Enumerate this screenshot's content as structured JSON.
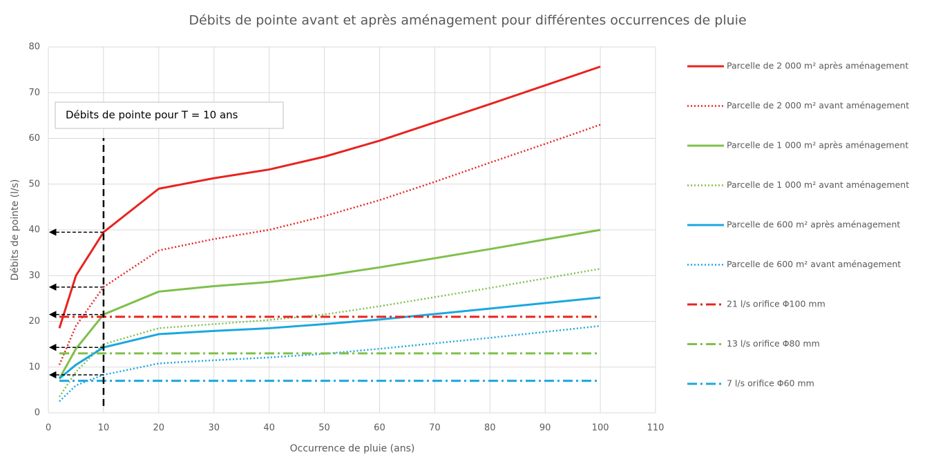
{
  "chart_data": {
    "type": "line",
    "title": "Débits de pointe avant et après aménagement pour différentes occurrences de pluie",
    "x_label": "Occurrence de pluie (ans)",
    "y_label": "Débits de pointe (l/s)",
    "annotation": "Débits de pointe pour T = 10 ans",
    "x": [
      2,
      5,
      10,
      20,
      30,
      40,
      50,
      60,
      70,
      80,
      90,
      100
    ],
    "xlim": [
      0,
      110
    ],
    "xticks": [
      0,
      10,
      20,
      30,
      40,
      50,
      60,
      70,
      80,
      90,
      100,
      110
    ],
    "ylim": [
      0,
      80
    ],
    "yticks": [
      0,
      10,
      20,
      30,
      40,
      50,
      60,
      70,
      80
    ],
    "grid": true,
    "legend": "right",
    "series": [
      {
        "name": "Parcelle de 2 000 m² après aménagement",
        "color": "#e8231e",
        "style": "solid",
        "values": [
          18.5,
          30,
          39.5,
          49,
          51.3,
          53.2,
          56,
          59.5,
          63.5,
          67.5,
          71.6,
          75.7
        ]
      },
      {
        "name": "Parcelle de 2 000 m² avant aménagement",
        "color": "#e8231e",
        "style": "dotted",
        "values": [
          10.5,
          19,
          27.5,
          35.5,
          38,
          40,
          43,
          46.5,
          50.5,
          54.7,
          58.8,
          63
        ]
      },
      {
        "name": "Parcelle de 1 000 m² après aménagement",
        "color": "#7ec04a",
        "style": "solid",
        "values": [
          7.5,
          14,
          21.5,
          26.5,
          27.7,
          28.6,
          30,
          31.8,
          33.8,
          35.8,
          37.9,
          40
        ]
      },
      {
        "name": "Parcelle de 1 000 m² avant aménagement",
        "color": "#7ec04a",
        "style": "dotted",
        "values": [
          3.5,
          9,
          15,
          18.5,
          19.4,
          20.3,
          21.5,
          23.3,
          25.3,
          27.3,
          29.4,
          31.5
        ]
      },
      {
        "name": "Parcelle de 600 m² après aménagement",
        "color": "#1aa7e0",
        "style": "solid",
        "values": [
          7.5,
          10.5,
          14.3,
          17.2,
          17.9,
          18.5,
          19.4,
          20.4,
          21.6,
          22.8,
          24,
          25.2
        ]
      },
      {
        "name": "Parcelle de 600 m² avant aménagement",
        "color": "#1aa7e0",
        "style": "dotted",
        "values": [
          2.5,
          6,
          8.3,
          10.8,
          11.5,
          12.1,
          12.9,
          14,
          15.2,
          16.4,
          17.7,
          19
        ]
      },
      {
        "name": "21 l/s orifice Φ100 mm",
        "color": "#e8231e",
        "style": "dashdot",
        "values": [
          21,
          21,
          21,
          21,
          21,
          21,
          21,
          21,
          21,
          21,
          21,
          21
        ]
      },
      {
        "name": "13 l/s orifice Φ80 mm",
        "color": "#7ec04a",
        "style": "dashdot",
        "values": [
          13,
          13,
          13,
          13,
          13,
          13,
          13,
          13,
          13,
          13,
          13,
          13
        ]
      },
      {
        "name": "7 l/s orifice Φ60 mm",
        "color": "#1aa7e0",
        "style": "dashdot",
        "values": [
          7,
          7,
          7,
          7,
          7,
          7,
          7,
          7,
          7,
          7,
          7,
          7
        ]
      }
    ]
  }
}
